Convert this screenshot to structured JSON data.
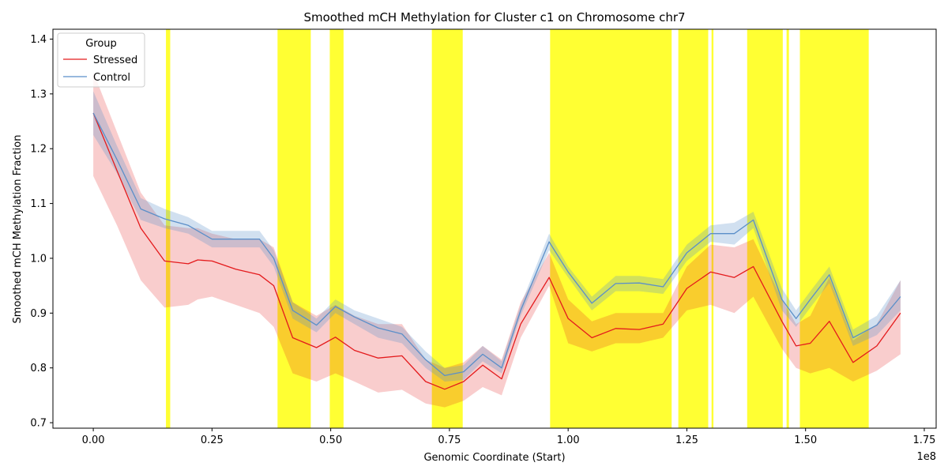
{
  "chart_data": {
    "type": "line",
    "title": "Smoothed mCH Methylation for Cluster c1 on Chromosome chr7",
    "xlabel": "Genomic Coordinate (Start)",
    "ylabel": "Smoothed mCH Methylation Fraction",
    "x_offset_label": "1e8",
    "xlim": [
      -0.085,
      1.775
    ],
    "ylim": [
      0.69,
      1.418
    ],
    "x_ticks": [
      0.0,
      0.25,
      0.5,
      0.75,
      1.0,
      1.25,
      1.5,
      1.75
    ],
    "x_tick_labels": [
      "0.00",
      "0.25",
      "0.50",
      "0.75",
      "1.00",
      "1.25",
      "1.50",
      "1.75"
    ],
    "y_ticks": [
      0.7,
      0.8,
      0.9,
      1.0,
      1.1,
      1.2,
      1.3,
      1.4
    ],
    "y_tick_labels": [
      "0.7",
      "0.8",
      "0.9",
      "1.0",
      "1.1",
      "1.2",
      "1.3",
      "1.4"
    ],
    "legend": {
      "title": "Group",
      "position": "upper-left"
    },
    "highlight_regions": [
      [
        0.153,
        0.162
      ],
      [
        0.388,
        0.458
      ],
      [
        0.498,
        0.527
      ],
      [
        0.713,
        0.778
      ],
      [
        0.962,
        1.218
      ],
      [
        1.232,
        1.295
      ],
      [
        1.302,
        1.306
      ],
      [
        1.377,
        1.452
      ],
      [
        1.46,
        1.465
      ],
      [
        1.488,
        1.633
      ]
    ],
    "highlight_color": "#ffff00",
    "series": [
      {
        "name": "Stressed",
        "color": "#e41a1c",
        "x": [
          0.0,
          0.05,
          0.1,
          0.15,
          0.2,
          0.22,
          0.25,
          0.3,
          0.35,
          0.38,
          0.42,
          0.47,
          0.51,
          0.55,
          0.6,
          0.65,
          0.7,
          0.74,
          0.78,
          0.82,
          0.86,
          0.9,
          0.96,
          1.0,
          1.05,
          1.1,
          1.15,
          1.2,
          1.25,
          1.3,
          1.35,
          1.39,
          1.45,
          1.48,
          1.51,
          1.55,
          1.6,
          1.65,
          1.7
        ],
        "values": [
          1.265,
          1.16,
          1.055,
          0.995,
          0.99,
          0.997,
          0.995,
          0.98,
          0.97,
          0.95,
          0.855,
          0.837,
          0.856,
          0.832,
          0.818,
          0.822,
          0.775,
          0.761,
          0.775,
          0.805,
          0.78,
          0.88,
          0.965,
          0.89,
          0.855,
          0.872,
          0.87,
          0.88,
          0.945,
          0.975,
          0.965,
          0.985,
          0.885,
          0.84,
          0.845,
          0.885,
          0.81,
          0.84,
          0.9
        ],
        "lower": [
          1.15,
          1.06,
          0.96,
          0.91,
          0.915,
          0.925,
          0.93,
          0.915,
          0.9,
          0.875,
          0.79,
          0.775,
          0.79,
          0.775,
          0.755,
          0.76,
          0.735,
          0.728,
          0.74,
          0.765,
          0.75,
          0.855,
          0.95,
          0.845,
          0.83,
          0.845,
          0.845,
          0.855,
          0.905,
          0.915,
          0.9,
          0.93,
          0.835,
          0.8,
          0.79,
          0.8,
          0.775,
          0.795,
          0.825
        ],
        "upper": [
          1.34,
          1.23,
          1.12,
          1.06,
          1.055,
          1.055,
          1.045,
          1.035,
          1.035,
          1.02,
          0.92,
          0.895,
          0.915,
          0.895,
          0.88,
          0.88,
          0.815,
          0.8,
          0.81,
          0.84,
          0.815,
          0.92,
          1.01,
          0.925,
          0.885,
          0.9,
          0.9,
          0.9,
          0.985,
          1.025,
          1.02,
          1.035,
          0.925,
          0.88,
          0.895,
          0.965,
          0.85,
          0.88,
          0.96
        ]
      },
      {
        "name": "Control",
        "color": "#5b8fc9",
        "x": [
          0.0,
          0.05,
          0.1,
          0.15,
          0.2,
          0.25,
          0.3,
          0.35,
          0.38,
          0.42,
          0.47,
          0.51,
          0.55,
          0.6,
          0.65,
          0.7,
          0.74,
          0.78,
          0.82,
          0.86,
          0.9,
          0.96,
          1.0,
          1.05,
          1.1,
          1.15,
          1.2,
          1.25,
          1.3,
          1.35,
          1.39,
          1.45,
          1.48,
          1.51,
          1.55,
          1.6,
          1.65,
          1.7
        ],
        "values": [
          1.265,
          1.18,
          1.09,
          1.072,
          1.06,
          1.035,
          1.035,
          1.035,
          1.0,
          0.905,
          0.878,
          0.912,
          0.893,
          0.873,
          0.862,
          0.815,
          0.786,
          0.793,
          0.825,
          0.8,
          0.905,
          1.03,
          0.975,
          0.918,
          0.954,
          0.955,
          0.948,
          1.01,
          1.045,
          1.045,
          1.07,
          0.925,
          0.89,
          0.925,
          0.97,
          0.855,
          0.878,
          0.93
        ],
        "lower": [
          1.225,
          1.155,
          1.07,
          1.055,
          1.045,
          1.02,
          1.02,
          1.02,
          0.985,
          0.89,
          0.865,
          0.9,
          0.88,
          0.855,
          0.845,
          0.8,
          0.775,
          0.778,
          0.812,
          0.79,
          0.895,
          1.015,
          0.965,
          0.905,
          0.94,
          0.94,
          0.935,
          0.995,
          1.03,
          1.025,
          1.055,
          0.905,
          0.875,
          0.91,
          0.955,
          0.84,
          0.86,
          0.905
        ],
        "upper": [
          1.305,
          1.205,
          1.11,
          1.09,
          1.075,
          1.05,
          1.05,
          1.05,
          1.015,
          0.92,
          0.89,
          0.925,
          0.905,
          0.89,
          0.875,
          0.83,
          0.8,
          0.805,
          0.84,
          0.812,
          0.915,
          1.045,
          0.985,
          0.93,
          0.968,
          0.968,
          0.962,
          1.025,
          1.06,
          1.065,
          1.085,
          0.945,
          0.905,
          0.94,
          0.985,
          0.87,
          0.895,
          0.96
        ]
      }
    ]
  }
}
